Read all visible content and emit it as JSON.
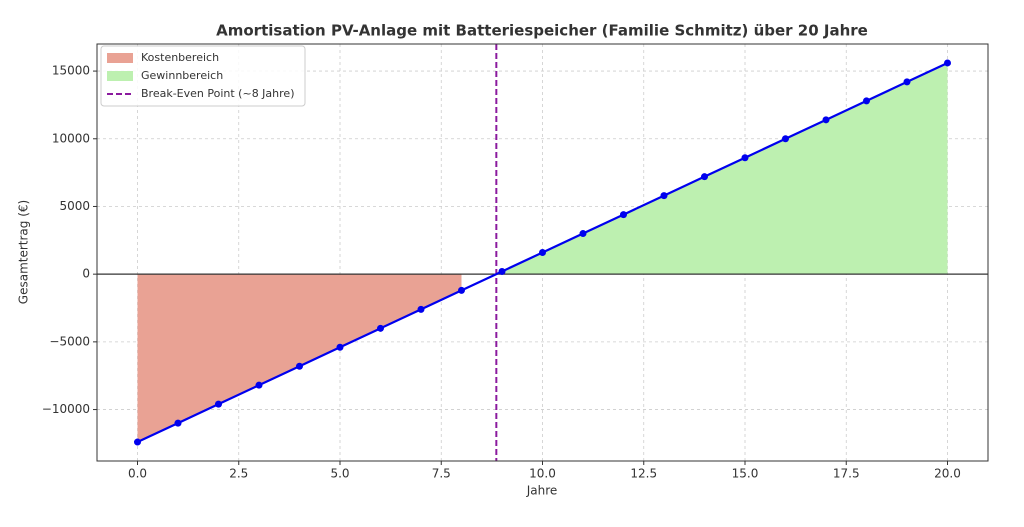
{
  "chart_data": {
    "type": "line",
    "title": "Amortisation PV-Anlage mit Batteriespeicher (Familie Schmitz) über 20 Jahre",
    "x_label": "Jahre",
    "y_label": "Gesamtertrag (€)",
    "x": [
      0,
      1,
      2,
      3,
      4,
      5,
      6,
      7,
      8,
      9,
      10,
      11,
      12,
      13,
      14,
      15,
      16,
      17,
      18,
      19,
      20
    ],
    "values": [
      -12400,
      -11000,
      -9600,
      -8200,
      -6800,
      -5400,
      -4000,
      -2600,
      -1200,
      200,
      1600,
      3000,
      4400,
      5800,
      7200,
      8600,
      10000,
      11400,
      12800,
      14200,
      15600
    ],
    "color": "#0000ee",
    "fills": [
      {
        "name": "Kostenbereich",
        "color": "#e9a294",
        "where": "negative"
      },
      {
        "name": "Gewinnbereich",
        "color": "#bdf0b0",
        "where": "positive"
      }
    ],
    "vlines": [
      {
        "name": "Break-Even Point (~8 Jahre)",
        "x": 8.86,
        "color": "#8b1a9e"
      }
    ],
    "hlines": [
      0
    ],
    "xlim": [
      -1,
      21
    ],
    "ylim": [
      -13800,
      17000
    ],
    "xticks": [
      {
        "value": 0,
        "label": "0.0"
      },
      {
        "value": 2.5,
        "label": "2.5"
      },
      {
        "value": 5,
        "label": "5.0"
      },
      {
        "value": 7.5,
        "label": "7.5"
      },
      {
        "value": 10,
        "label": "10.0"
      },
      {
        "value": 12.5,
        "label": "12.5"
      },
      {
        "value": 15,
        "label": "15.0"
      },
      {
        "value": 17.5,
        "label": "17.5"
      },
      {
        "value": 20,
        "label": "20.0"
      }
    ],
    "yticks": [
      {
        "value": -10000,
        "label": "−10000"
      },
      {
        "value": -5000,
        "label": "−5000"
      },
      0,
      5000,
      10000,
      15000
    ],
    "grid": true,
    "legend": "upper left"
  }
}
